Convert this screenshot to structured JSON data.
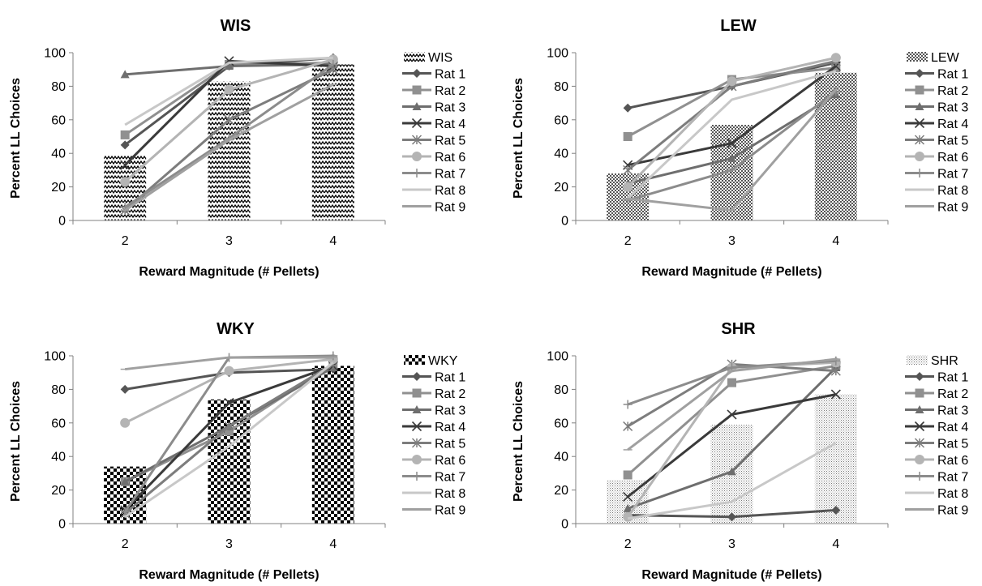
{
  "chart_data": [
    {
      "type": "bar",
      "title": "WIS",
      "xlabel": "Reward Magnitude (# Pellets)",
      "ylabel": "Percent LL Choices",
      "categories": [
        "2",
        "3",
        "4"
      ],
      "ylim": [
        0,
        100
      ],
      "yticks": [
        0,
        20,
        40,
        60,
        80,
        100
      ],
      "pattern": "wave",
      "legend_position": "right",
      "bar_series": {
        "name": "WIS",
        "values": [
          39,
          83,
          93
        ]
      },
      "series": [
        {
          "name": "Rat 1",
          "marker": "diamond",
          "color": "#555555",
          "values": [
            45,
            92,
            97
          ]
        },
        {
          "name": "Rat 2",
          "marker": "square",
          "color": "#909090",
          "values": [
            51,
            93,
            94
          ]
        },
        {
          "name": "Rat 3",
          "marker": "triangle",
          "color": "#6e6e6e",
          "values": [
            87,
            92,
            93
          ]
        },
        {
          "name": "Rat 4",
          "marker": "x",
          "color": "#3a3a3a",
          "values": [
            33,
            95,
            92
          ]
        },
        {
          "name": "Rat 5",
          "marker": "asterisk",
          "color": "#7d7d7d",
          "values": [
            6,
            60,
            90
          ]
        },
        {
          "name": "Rat 6",
          "marker": "circle",
          "color": "#b4b4b4",
          "values": [
            23,
            78,
            96
          ]
        },
        {
          "name": "Rat 7",
          "marker": "plus",
          "color": "#8c8c8c",
          "values": [
            8,
            49,
            93
          ]
        },
        {
          "name": "Rat 8",
          "marker": "none",
          "color": "#c8c8c8",
          "values": [
            57,
            94,
            97
          ]
        },
        {
          "name": "Rat 9",
          "marker": "dash",
          "color": "#a0a0a0",
          "values": [
            6,
            48,
            81
          ]
        }
      ]
    },
    {
      "type": "bar",
      "title": "LEW",
      "xlabel": "Reward Magnitude (# Pellets)",
      "ylabel": "Percent LL Choices",
      "categories": [
        "2",
        "3",
        "4"
      ],
      "ylim": [
        0,
        100
      ],
      "yticks": [
        0,
        20,
        40,
        60,
        80,
        100
      ],
      "pattern": "checker-small",
      "legend_position": "right",
      "bar_series": {
        "name": "LEW",
        "values": [
          28,
          57,
          88
        ]
      },
      "series": [
        {
          "name": "Rat 1",
          "marker": "diamond",
          "color": "#555555",
          "values": [
            67,
            80,
            94
          ]
        },
        {
          "name": "Rat 2",
          "marker": "square",
          "color": "#909090",
          "values": [
            50,
            84,
            91
          ]
        },
        {
          "name": "Rat 3",
          "marker": "triangle",
          "color": "#6e6e6e",
          "values": [
            22,
            37,
            75
          ]
        },
        {
          "name": "Rat 4",
          "marker": "x",
          "color": "#3a3a3a",
          "values": [
            33,
            46,
            92
          ]
        },
        {
          "name": "Rat 5",
          "marker": "asterisk",
          "color": "#7d7d7d",
          "values": [
            30,
            80,
            95
          ]
        },
        {
          "name": "Rat 6",
          "marker": "circle",
          "color": "#b4b4b4",
          "values": [
            20,
            83,
            97
          ]
        },
        {
          "name": "Rat 7",
          "marker": "plus",
          "color": "#8c8c8c",
          "values": [
            12,
            30,
            77
          ]
        },
        {
          "name": "Rat 8",
          "marker": "none",
          "color": "#c8c8c8",
          "values": [
            13,
            72,
            89
          ]
        },
        {
          "name": "Rat 9",
          "marker": "dash",
          "color": "#a0a0a0",
          "values": [
            13,
            6,
            78
          ]
        }
      ]
    },
    {
      "type": "bar",
      "title": "WKY",
      "xlabel": "Reward Magnitude (# Pellets)",
      "ylabel": "Percent LL Choices",
      "categories": [
        "2",
        "3",
        "4"
      ],
      "ylim": [
        0,
        100
      ],
      "yticks": [
        0,
        20,
        40,
        60,
        80,
        100
      ],
      "pattern": "checker-large",
      "legend_position": "right",
      "bar_series": {
        "name": "WKY",
        "values": [
          34,
          74,
          94
        ]
      },
      "series": [
        {
          "name": "Rat 1",
          "marker": "diamond",
          "color": "#555555",
          "values": [
            80,
            90,
            92
          ]
        },
        {
          "name": "Rat 2",
          "marker": "square",
          "color": "#909090",
          "values": [
            25,
            55,
            95
          ]
        },
        {
          "name": "Rat 3",
          "marker": "triangle",
          "color": "#6e6e6e",
          "values": [
            25,
            58,
            93
          ]
        },
        {
          "name": "Rat 4",
          "marker": "x",
          "color": "#3a3a3a",
          "values": [
            8,
            72,
            94
          ]
        },
        {
          "name": "Rat 5",
          "marker": "asterisk",
          "color": "#7d7d7d",
          "values": [
            6,
            58,
            95
          ]
        },
        {
          "name": "Rat 6",
          "marker": "circle",
          "color": "#b4b4b4",
          "values": [
            60,
            91,
            98
          ]
        },
        {
          "name": "Rat 7",
          "marker": "plus",
          "color": "#8c8c8c",
          "values": [
            7,
            99,
            100
          ]
        },
        {
          "name": "Rat 8",
          "marker": "none",
          "color": "#c8c8c8",
          "values": [
            4,
            46,
            96
          ]
        },
        {
          "name": "Rat 9",
          "marker": "dash",
          "color": "#a0a0a0",
          "values": [
            92,
            99,
            99
          ]
        }
      ]
    },
    {
      "type": "bar",
      "title": "SHR",
      "xlabel": "Reward Magnitude (# Pellets)",
      "ylabel": "Percent LL Choices",
      "categories": [
        "2",
        "3",
        "4"
      ],
      "ylim": [
        0,
        100
      ],
      "yticks": [
        0,
        20,
        40,
        60,
        80,
        100
      ],
      "pattern": "dots",
      "legend_position": "right",
      "bar_series": {
        "name": "SHR",
        "values": [
          26,
          59,
          77
        ]
      },
      "series": [
        {
          "name": "Rat 1",
          "marker": "diamond",
          "color": "#555555",
          "values": [
            5,
            4,
            8
          ]
        },
        {
          "name": "Rat 2",
          "marker": "square",
          "color": "#909090",
          "values": [
            29,
            84,
            94
          ]
        },
        {
          "name": "Rat 3",
          "marker": "triangle",
          "color": "#6e6e6e",
          "values": [
            9,
            31,
            93
          ]
        },
        {
          "name": "Rat 4",
          "marker": "x",
          "color": "#3a3a3a",
          "values": [
            16,
            65,
            77
          ]
        },
        {
          "name": "Rat 5",
          "marker": "asterisk",
          "color": "#7d7d7d",
          "values": [
            58,
            95,
            91
          ]
        },
        {
          "name": "Rat 6",
          "marker": "circle",
          "color": "#b4b4b4",
          "values": [
            4,
            93,
            96
          ]
        },
        {
          "name": "Rat 7",
          "marker": "plus",
          "color": "#8c8c8c",
          "values": [
            71,
            93,
            97
          ]
        },
        {
          "name": "Rat 8",
          "marker": "none",
          "color": "#c8c8c8",
          "values": [
            3,
            13,
            48
          ]
        },
        {
          "name": "Rat 9",
          "marker": "dash",
          "color": "#a0a0a0",
          "values": [
            44,
            91,
            98
          ]
        }
      ]
    }
  ]
}
